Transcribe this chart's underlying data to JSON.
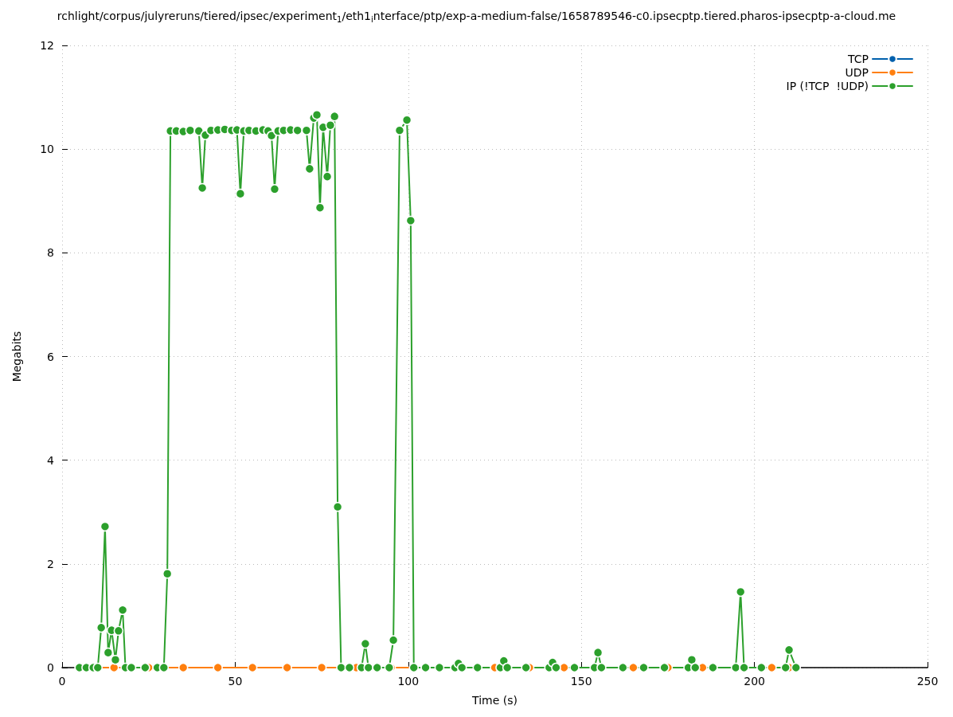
{
  "chart_data": {
    "type": "line",
    "title": "rchlight/corpus/julyreruns/tiered/ipsec/experiment$_{1}$/eth1$_{i}$nterface/ptp/exp-a-medium-false/1658789546-c0.ipsecptp.tiered.pharos-ipsecptp-a-cloud.me",
    "xlabel": "Time (s)",
    "ylabel": "Megabits",
    "xlim": [
      0,
      250
    ],
    "xticks": [
      0,
      50,
      100,
      150,
      200,
      250
    ],
    "ylim": [
      0,
      12
    ],
    "yticks": [
      0,
      2,
      4,
      6,
      8,
      10,
      12
    ],
    "grid": true,
    "legend": "top right",
    "marker": "circle",
    "line_style": "solid",
    "series": [
      {
        "name": "TCP",
        "color": "#0060ad"
      },
      {
        "name": "UDP",
        "color": "#ff7f0e",
        "x": [
          5,
          15,
          25,
          35,
          45,
          55,
          65,
          75,
          85,
          95,
          105,
          115,
          125,
          135,
          145,
          155,
          165,
          175,
          185,
          195,
          205,
          210
        ],
        "values": [
          0,
          0,
          0,
          0,
          0,
          0,
          0,
          0,
          0,
          0,
          0,
          0,
          0,
          0,
          0,
          0,
          0,
          0,
          0,
          0,
          0,
          0
        ]
      },
      {
        "name": "IP (!TCP  !UDP)",
        "color": "#2ca02c",
        "x": [
          5,
          7,
          9,
          10.3,
          11.3,
          12.4,
          13.3,
          14.3,
          15.4,
          16.3,
          17.5,
          18.3,
          20,
          24,
          27.5,
          29.4,
          30.4,
          31.3,
          33,
          35,
          37,
          39.5,
          40.5,
          41.4,
          43,
          45,
          47,
          49,
          50.5,
          51.5,
          52.5,
          54,
          56,
          58,
          59.5,
          60.5,
          61.4,
          62.4,
          64,
          66,
          68,
          70.6,
          71.5,
          72.7,
          73.6,
          74.5,
          75.4,
          76.6,
          77.5,
          78.7,
          79.6,
          80.6,
          83,
          86.5,
          87.6,
          88.5,
          91,
          94.5,
          95.7,
          97.5,
          99.6,
          100.7,
          101.6,
          105,
          109,
          113.5,
          114.5,
          115.5,
          120,
          126.6,
          127.6,
          128.6,
          134,
          140.7,
          141.7,
          142.7,
          148,
          153.8,
          154.8,
          155.8,
          162,
          168,
          174,
          180.9,
          181.9,
          182.9,
          188,
          194.6,
          196,
          197,
          202,
          209,
          210,
          212
        ],
        "values": [
          0,
          0,
          0,
          0,
          0.77,
          2.72,
          0.29,
          0.72,
          0.15,
          0.71,
          1.11,
          0,
          0,
          0,
          0,
          0,
          1.81,
          10.35,
          10.35,
          10.34,
          10.36,
          10.35,
          9.25,
          10.27,
          10.36,
          10.37,
          10.38,
          10.36,
          10.37,
          9.14,
          10.35,
          10.36,
          10.35,
          10.37,
          10.35,
          10.26,
          9.23,
          10.35,
          10.36,
          10.37,
          10.36,
          10.36,
          9.62,
          10.6,
          10.66,
          8.87,
          10.42,
          9.47,
          10.46,
          10.63,
          3.1,
          0,
          0,
          0,
          0.46,
          0,
          0,
          0,
          0.53,
          10.36,
          10.56,
          8.62,
          0,
          0,
          0,
          0,
          0.08,
          0,
          0,
          0,
          0.13,
          0,
          0,
          0,
          0.1,
          0,
          0,
          0,
          0.29,
          0,
          0,
          0,
          0,
          0,
          0.15,
          0,
          0,
          0,
          1.46,
          0,
          0,
          0,
          0.34,
          0
        ]
      }
    ]
  }
}
